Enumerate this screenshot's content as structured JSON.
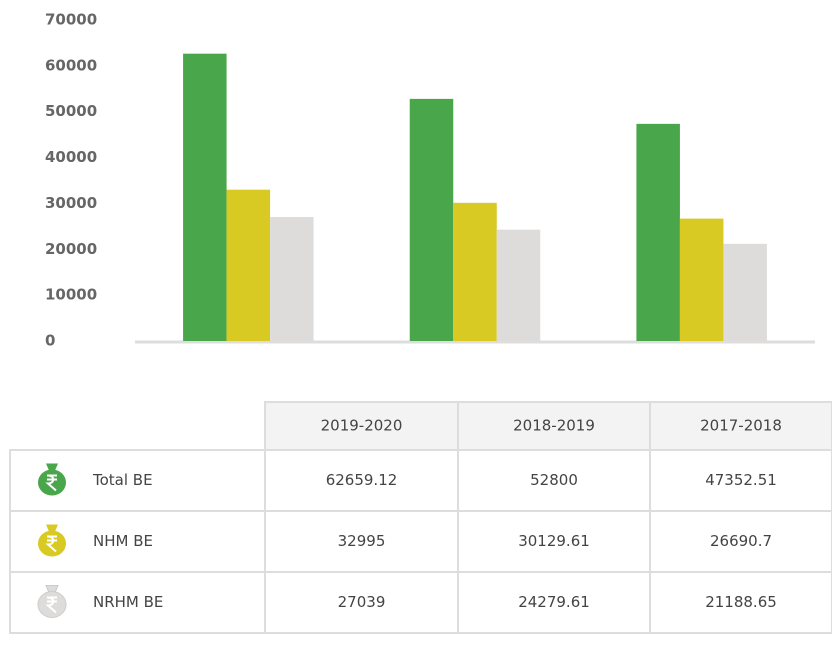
{
  "chart_data": {
    "type": "bar",
    "categories": [
      "2019-2020",
      "2018-2019",
      "2017-2018"
    ],
    "series": [
      {
        "name": "Total BE",
        "color": "#4aa64a",
        "values": [
          62659.12,
          52800,
          47352.51
        ]
      },
      {
        "name": "NHM BE",
        "color": "#d9c923",
        "values": [
          32995,
          30129.61,
          26690.7
        ]
      },
      {
        "name": "NRHM BE",
        "color": "#dedcdb",
        "values": [
          27039,
          24279.61,
          21188.65
        ]
      }
    ],
    "ylim": [
      0,
      70000
    ],
    "yticks": [
      0,
      10000,
      20000,
      30000,
      40000,
      50000,
      60000,
      70000
    ],
    "grid": false
  }
}
